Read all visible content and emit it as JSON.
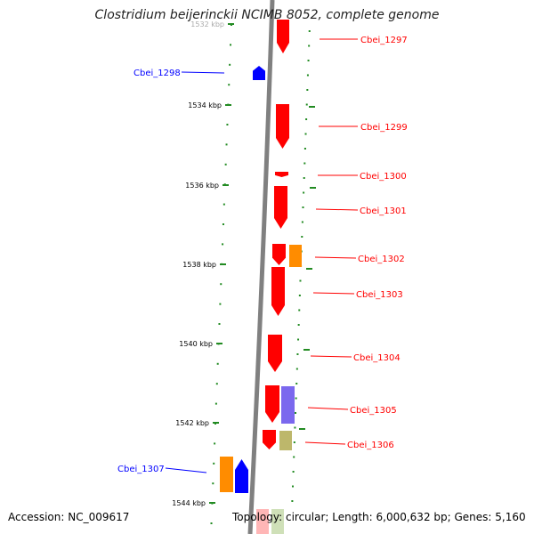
{
  "title": "Clostridium beijerinckii NCIMB 8052, complete genome",
  "footer": {
    "accession": "Accession: NC_009617",
    "summary": "Topology: circular; Length: 6,000,632 bp; Genes: 5,160"
  },
  "colors": {
    "plus_strand": "#ff0000",
    "minus_strand": "#0000ff",
    "backbone": "#808080",
    "tick": "#228b22",
    "orange_feature": "#ff8c00",
    "purple_feature": "#7b68ee",
    "olive_feature": "#bdb76b"
  },
  "kbp_ticks": [
    {
      "label": "1532 kbp"
    },
    {
      "label": "1534 kbp"
    },
    {
      "label": "1536 kbp"
    },
    {
      "label": "1538 kbp"
    },
    {
      "label": "1540 kbp"
    },
    {
      "label": "1542 kbp"
    },
    {
      "label": "1544 kbp"
    }
  ],
  "genes": [
    {
      "name": "Cbei_1297",
      "strand": "plus"
    },
    {
      "name": "Cbei_1298",
      "strand": "minus"
    },
    {
      "name": "Cbei_1299",
      "strand": "plus"
    },
    {
      "name": "Cbei_1300",
      "strand": "plus"
    },
    {
      "name": "Cbei_1301",
      "strand": "plus"
    },
    {
      "name": "Cbei_1302",
      "strand": "plus"
    },
    {
      "name": "Cbei_1303",
      "strand": "plus"
    },
    {
      "name": "Cbei_1304",
      "strand": "plus"
    },
    {
      "name": "Cbei_1305",
      "strand": "plus"
    },
    {
      "name": "Cbei_1306",
      "strand": "plus"
    },
    {
      "name": "Cbei_1307",
      "strand": "minus"
    }
  ]
}
